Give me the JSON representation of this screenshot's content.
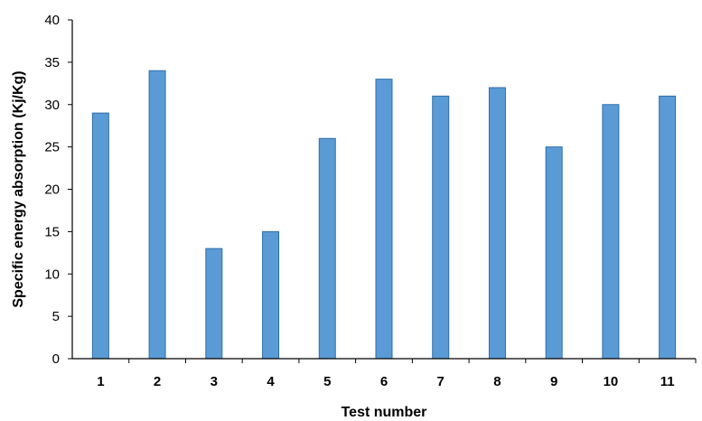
{
  "chart_data": {
    "type": "bar",
    "categories": [
      "1",
      "2",
      "3",
      "4",
      "5",
      "6",
      "7",
      "8",
      "9",
      "10",
      "11"
    ],
    "values": [
      29,
      34,
      13,
      15,
      26,
      33,
      31,
      32,
      25,
      30,
      31
    ],
    "title": "",
    "xlabel": "Test number",
    "ylabel": "Specific energy absorption (Kj/Kg)",
    "ylim": [
      0,
      40
    ],
    "yticks": [
      0,
      5,
      10,
      15,
      20,
      25,
      30,
      35,
      40
    ],
    "grid": false,
    "legend": "none",
    "bar_color": "#5b9bd5",
    "bar_edge_color": "#2e6eab"
  }
}
